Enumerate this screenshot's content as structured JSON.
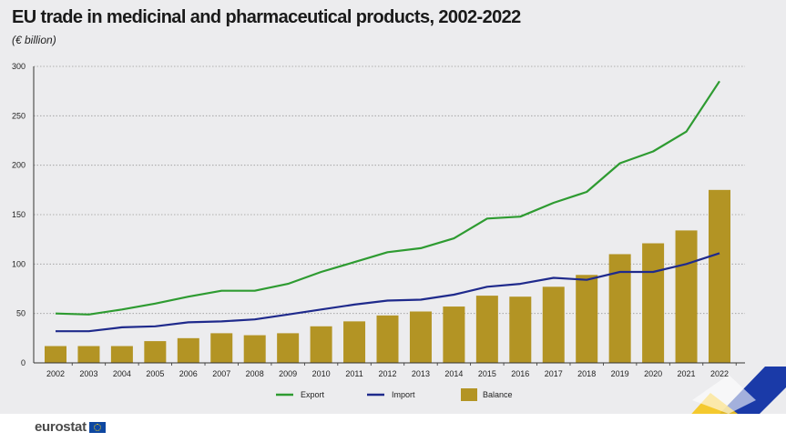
{
  "header": {
    "title": "EU trade in medicinal and pharmaceutical products, 2002-2022",
    "subtitle": "(€ billion)"
  },
  "footer": {
    "logo_text": "eurostat"
  },
  "colors": {
    "export": "#2e9b31",
    "import": "#1f2a8c",
    "balance": "#b39424",
    "grid": "#9a9a9a",
    "deco_blue": "#1a3aa8",
    "deco_yellow": "#f5c518"
  },
  "chart_data": {
    "type": "bar+line",
    "title": "EU trade in medicinal and pharmaceutical products, 2002-2022",
    "subtitle": "(€ billion)",
    "categories": [
      "2002",
      "2003",
      "2004",
      "2005",
      "2006",
      "2007",
      "2008",
      "2009",
      "2010",
      "2011",
      "2012",
      "2013",
      "2014",
      "2015",
      "2016",
      "2017",
      "2018",
      "2019",
      "2020",
      "2021",
      "2022"
    ],
    "ylim": [
      0,
      300
    ],
    "yticks": [
      0,
      50,
      100,
      150,
      200,
      250,
      300
    ],
    "grid": true,
    "legend": "bottom",
    "series": [
      {
        "name": "Export",
        "kind": "line",
        "values": [
          50,
          49,
          54,
          60,
          67,
          73,
          73,
          80,
          92,
          102,
          112,
          116,
          126,
          146,
          148,
          162,
          173,
          202,
          214,
          234,
          285
        ]
      },
      {
        "name": "Import",
        "kind": "line",
        "values": [
          32,
          32,
          36,
          37,
          41,
          42,
          44,
          49,
          54,
          59,
          63,
          64,
          69,
          77,
          80,
          86,
          84,
          92,
          92,
          100,
          111
        ]
      },
      {
        "name": "Balance",
        "kind": "bar",
        "values": [
          17,
          17,
          17,
          22,
          25,
          30,
          28,
          30,
          37,
          42,
          48,
          52,
          57,
          68,
          67,
          77,
          89,
          110,
          121,
          134,
          175
        ]
      }
    ]
  }
}
